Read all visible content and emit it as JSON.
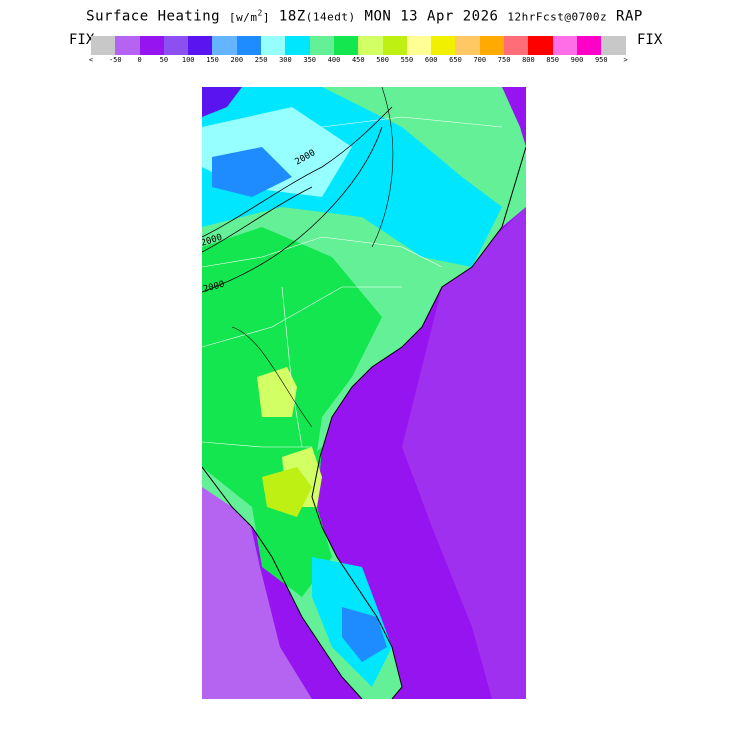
{
  "header": {
    "title_main": "Surface Heating",
    "title_units_open": "[w/m",
    "title_units_sup": "2",
    "title_units_close": "]",
    "title_valid": "18Z",
    "title_local": "(14edt)",
    "title_date": "MON 13 Apr 2026",
    "title_fcst": "12hrFcst@0700z",
    "title_model": "RAP"
  },
  "colorbar": {
    "left_label": "FIX",
    "right_label": "FIX",
    "less_symbol": "<",
    "greater_symbol": ">",
    "colors": [
      "#c8c8c8",
      "#b464f0",
      "#9614f0",
      "#8c50f0",
      "#5a14f0",
      "#64b4ff",
      "#1e8cff",
      "#96ffff",
      "#00e6ff",
      "#64f096",
      "#14e650",
      "#d2ff64",
      "#bef014",
      "#ffff96",
      "#f0f000",
      "#ffc864",
      "#ffaa00",
      "#ff6e78",
      "#ff0000",
      "#ff6ee6",
      "#ff00c8",
      "#c8c8c8"
    ],
    "tick_labels": [
      "-50",
      "0",
      "50",
      "100",
      "150",
      "200",
      "250",
      "300",
      "350",
      "400",
      "450",
      "500",
      "550",
      "600",
      "650",
      "700",
      "750",
      "800",
      "850",
      "900",
      "950"
    ]
  },
  "map": {
    "contour_labels": [
      "2000",
      "2000",
      "2000"
    ],
    "palette": {
      "ocean": "#9614f0",
      "ocean_light": "#b464f0",
      "land_green": "#14e650",
      "land_mint": "#64f096",
      "land_cyan": "#00e6ff",
      "land_pale_cyan": "#96ffff",
      "land_blue": "#1e8cff",
      "land_yellow_green": "#d2ff64",
      "land_lime": "#bef014"
    }
  }
}
